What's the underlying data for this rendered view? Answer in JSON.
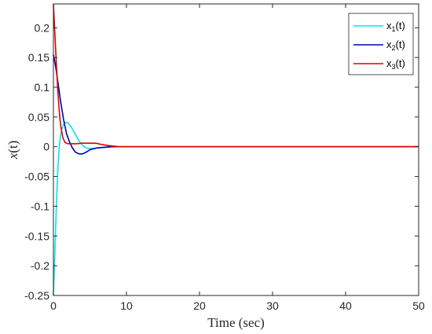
{
  "chart_data": {
    "type": "line",
    "xlabel": "Time (sec)",
    "ylabel_main": "x",
    "ylabel_arg": "(t)",
    "xlim": [
      0,
      50
    ],
    "ylim": [
      -0.25,
      0.24
    ],
    "grid": false,
    "legend_position": "top-right",
    "x_ticks": [
      0,
      10,
      20,
      30,
      40,
      50
    ],
    "x_tick_labels": [
      "0",
      "10",
      "20",
      "30",
      "40",
      "50"
    ],
    "y_ticks": [
      -0.25,
      -0.2,
      -0.15,
      -0.1,
      -0.05,
      0,
      0.05,
      0.1,
      0.15,
      0.2
    ],
    "y_tick_labels": [
      "-0.25",
      "-0.2",
      "-0.15",
      "-0.1",
      "-0.05",
      "0",
      "0.05",
      "0.1",
      "0.15",
      "0.2"
    ],
    "series": [
      {
        "name": "x1(t)",
        "legend_main": "x",
        "legend_sub": "1",
        "legend_tail": "(t)",
        "color": "#00e5ee",
        "points": [
          [
            0,
            -0.25
          ],
          [
            0.2,
            -0.18
          ],
          [
            0.4,
            -0.1
          ],
          [
            0.6,
            -0.04
          ],
          [
            0.8,
            0.0
          ],
          [
            1.0,
            0.022
          ],
          [
            1.3,
            0.036
          ],
          [
            1.6,
            0.041
          ],
          [
            2.0,
            0.04
          ],
          [
            2.5,
            0.032
          ],
          [
            3.0,
            0.021
          ],
          [
            3.5,
            0.01
          ],
          [
            4.0,
            0.002
          ],
          [
            4.5,
            -0.002
          ],
          [
            5.0,
            -0.003
          ],
          [
            6.0,
            -0.002
          ],
          [
            7.0,
            -0.001
          ],
          [
            8.0,
            0.0
          ],
          [
            10,
            0
          ],
          [
            50,
            0
          ]
        ]
      },
      {
        "name": "x2(t)",
        "legend_main": "x",
        "legend_sub": "2",
        "legend_tail": "(t)",
        "color": "#0000b4",
        "points": [
          [
            0,
            0.155
          ],
          [
            0.3,
            0.135
          ],
          [
            0.6,
            0.11
          ],
          [
            1.0,
            0.075
          ],
          [
            1.4,
            0.045
          ],
          [
            1.8,
            0.022
          ],
          [
            2.2,
            0.008
          ],
          [
            2.6,
            -0.002
          ],
          [
            3.0,
            -0.009
          ],
          [
            3.5,
            -0.012
          ],
          [
            4.0,
            -0.012
          ],
          [
            4.5,
            -0.009
          ],
          [
            5.0,
            -0.005
          ],
          [
            6.0,
            -0.002
          ],
          [
            7.0,
            -0.001
          ],
          [
            8.0,
            0.0
          ],
          [
            10,
            0
          ],
          [
            50,
            0
          ]
        ]
      },
      {
        "name": "x3(t)",
        "legend_main": "x",
        "legend_sub": "3",
        "legend_tail": "(t)",
        "color": "#e00000",
        "points": [
          [
            0,
            0.24
          ],
          [
            0.2,
            0.19
          ],
          [
            0.4,
            0.14
          ],
          [
            0.6,
            0.095
          ],
          [
            0.8,
            0.06
          ],
          [
            1.0,
            0.035
          ],
          [
            1.3,
            0.015
          ],
          [
            1.6,
            0.007
          ],
          [
            2.0,
            0.005
          ],
          [
            3.0,
            0.005
          ],
          [
            4.0,
            0.006
          ],
          [
            5.0,
            0.006
          ],
          [
            5.8,
            0.006
          ],
          [
            6.5,
            0.004
          ],
          [
            7.5,
            0.002
          ],
          [
            9.0,
            0.0
          ],
          [
            10,
            0
          ],
          [
            50,
            0
          ]
        ]
      }
    ]
  }
}
